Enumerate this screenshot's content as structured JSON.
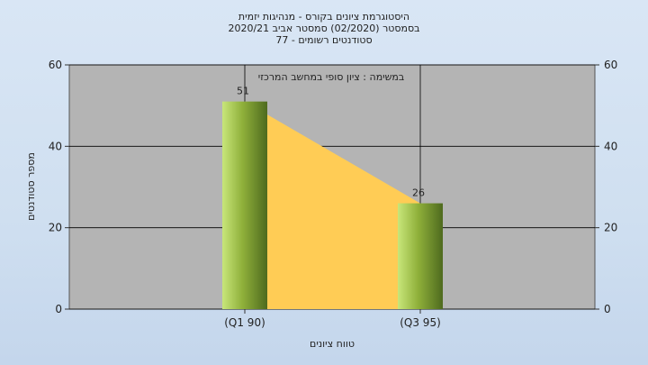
{
  "chart_data": {
    "type": "bar",
    "title": "היסטוגרמת ציונים בקורס - מנהיגות יזמית",
    "subtitle_lines": [
      "בסמסטר  (02/2020)  סמסטר אביב 2020/21",
      "סטודנטים רשומים - 77"
    ],
    "annotation": "במשימה : ציון סופי במחשב המרכזי",
    "categories": [
      "(Q1 90)",
      "(Q3 95)"
    ],
    "values": [
      51,
      26
    ],
    "data_labels": [
      "51",
      "26"
    ],
    "ylabel": "מספר סטודנטים",
    "xlabel": "טווח ציונים",
    "ylim": [
      0,
      60
    ],
    "yticks": [
      "0",
      "20",
      "40",
      "60"
    ],
    "grid": true,
    "colors": {
      "plot_background": "#b4b4b4",
      "bar_light": "#c8e67a",
      "bar_dark": "#4e6a1e",
      "area_fill": "#ffcc55",
      "grid": "#000000"
    }
  }
}
